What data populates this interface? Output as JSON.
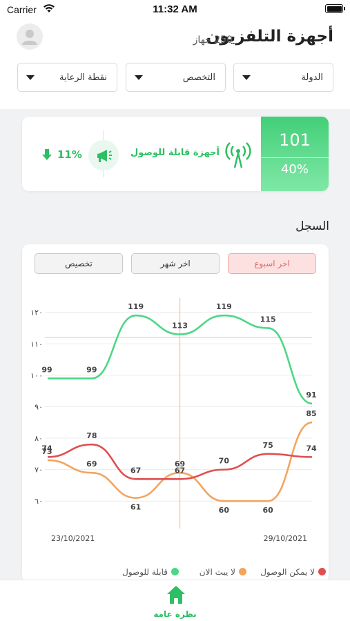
{
  "status_bar": {
    "carrier": "Carrier",
    "time": "11:32 AM"
  },
  "header": {
    "title": "أجهزة التلفزيون",
    "device_count": "250 جهاز"
  },
  "filters": [
    {
      "label": "الدولة"
    },
    {
      "label": "التخصص"
    },
    {
      "label": "نقطة الرعاية"
    }
  ],
  "summary": {
    "value": "101",
    "percent": "40%",
    "label": "أجهزة قابلة للوصول",
    "change": "11%",
    "accent": "#2dbf63"
  },
  "history": {
    "title": "السجل",
    "tabs": [
      {
        "label": "اخر اسبوع",
        "active": true
      },
      {
        "label": "اخر شهر",
        "active": false
      },
      {
        "label": "تخصيص",
        "active": false
      }
    ]
  },
  "chart_data": {
    "type": "line",
    "x_labels": [
      "23/10/2021",
      "29/10/2021"
    ],
    "y_ticks": [
      "٦٠",
      "٧٠",
      "٨٠",
      "٩٠",
      "١٠٠",
      "١١٠",
      "١٢٠"
    ],
    "ylim": [
      55,
      123
    ],
    "series": [
      {
        "name": "قابلة للوصول",
        "color": "#4cd785",
        "values": [
          99,
          99,
          119,
          113,
          119,
          115,
          91
        ]
      },
      {
        "name": "لا يبث الان",
        "color": "#f3a55e",
        "values": [
          73,
          69,
          61,
          69,
          60,
          60,
          85
        ]
      },
      {
        "name": "لا يمكن الوصول",
        "color": "#e04f4f",
        "values": [
          74,
          78,
          67,
          67,
          70,
          75,
          74
        ]
      }
    ],
    "reference_line": 112,
    "legend_position": "bottom"
  },
  "nav": {
    "home_label": "نظرة عامة"
  }
}
